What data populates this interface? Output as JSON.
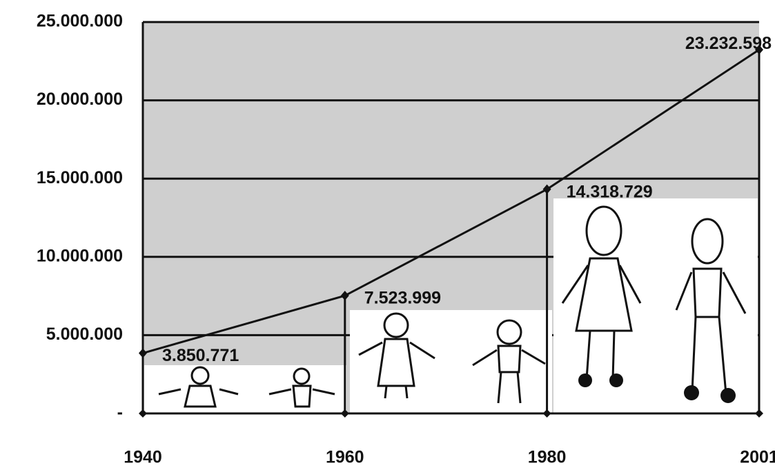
{
  "chart_data": {
    "type": "line",
    "x": [
      1940,
      1960,
      1980,
      2001
    ],
    "values": [
      3850771,
      7523999,
      14318729,
      23232598
    ],
    "value_labels": [
      "3.850.771",
      "7.523.999",
      "14.318.729",
      "23.232.598"
    ],
    "color": "#111111",
    "xlim": [
      1940,
      2001
    ],
    "xticks": [
      1940,
      1960,
      1980,
      2001
    ],
    "ylim": [
      0,
      25000000
    ],
    "yticks": [
      {
        "value": 0,
        "label": "-"
      },
      {
        "value": 5000000,
        "label": "5.000.000"
      },
      {
        "value": 10000000,
        "label": "10.000.000"
      },
      {
        "value": 15000000,
        "label": "15.000.000"
      },
      {
        "value": 20000000,
        "label": "20.000.000"
      },
      {
        "value": 25000000,
        "label": "25.000.000"
      }
    ],
    "grid": true
  }
}
